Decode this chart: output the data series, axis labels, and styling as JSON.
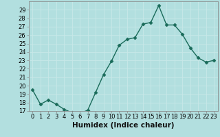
{
  "x": [
    0,
    1,
    2,
    3,
    4,
    5,
    6,
    7,
    8,
    9,
    10,
    11,
    12,
    13,
    14,
    15,
    16,
    17,
    18,
    19,
    20,
    21,
    22,
    23
  ],
  "y": [
    19.5,
    17.8,
    18.3,
    17.8,
    17.2,
    16.8,
    16.7,
    17.1,
    19.2,
    21.3,
    22.9,
    24.8,
    25.5,
    25.7,
    27.3,
    27.5,
    29.5,
    27.2,
    27.2,
    26.1,
    24.5,
    23.3,
    22.8,
    23.0
  ],
  "line_color": "#1a6b5a",
  "marker": "D",
  "markersize": 2.5,
  "linewidth": 1.0,
  "xlabel": "Humidex (Indice chaleur)",
  "bg_color": "#b2dfdf",
  "grid_color": "#e8f5f5",
  "xlim": [
    -0.5,
    23.5
  ],
  "ylim": [
    17,
    30
  ],
  "yticks": [
    17,
    18,
    19,
    20,
    21,
    22,
    23,
    24,
    25,
    26,
    27,
    28,
    29
  ],
  "xticks": [
    0,
    1,
    2,
    3,
    4,
    5,
    6,
    7,
    8,
    9,
    10,
    11,
    12,
    13,
    14,
    15,
    16,
    17,
    18,
    19,
    20,
    21,
    22,
    23
  ],
  "xlabel_fontsize": 7.5,
  "tick_fontsize": 6.0
}
